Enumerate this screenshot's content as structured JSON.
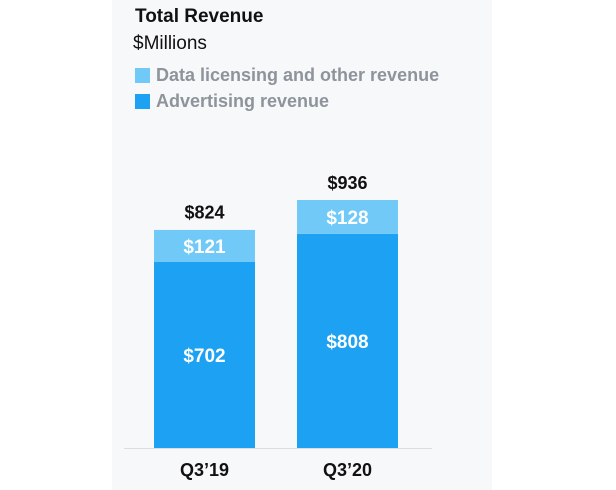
{
  "chart_data": {
    "type": "bar",
    "stacked": true,
    "title": "Total Revenue",
    "subtitle": "$Millions",
    "categories": [
      "Q3’19",
      "Q3’20"
    ],
    "totals": [
      824,
      936
    ],
    "total_labels": [
      "$824",
      "$936"
    ],
    "series": [
      {
        "name": "Advertising revenue",
        "color": "#1da1f2",
        "values": [
          702,
          808
        ],
        "labels": [
          "$702",
          "$808"
        ]
      },
      {
        "name": "Data licensing and other revenue",
        "color": "#71c9f8",
        "values": [
          121,
          128
        ],
        "labels": [
          "$121",
          "$128"
        ]
      }
    ],
    "legend": [
      {
        "label": "Data licensing and other revenue",
        "color": "#71c9f8"
      },
      {
        "label": "Advertising revenue",
        "color": "#1da1f2"
      }
    ],
    "xlabel": "",
    "ylabel": "",
    "ylim": [
      0,
      936
    ]
  }
}
